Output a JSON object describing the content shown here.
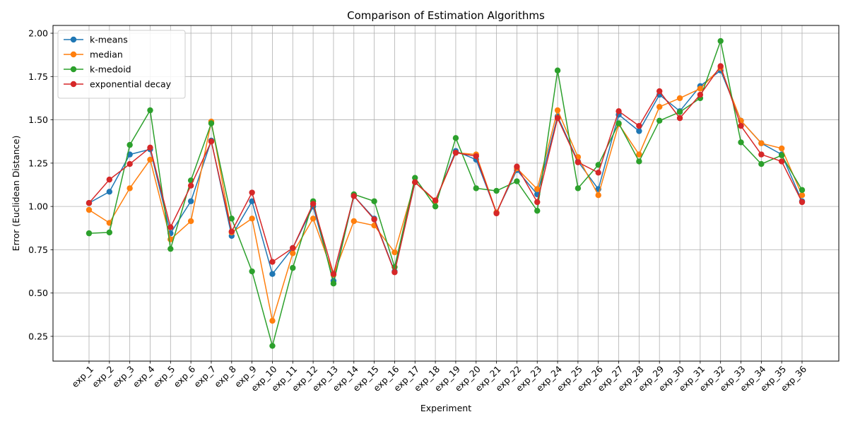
{
  "chart_data": {
    "type": "line",
    "title": "Comparison of Estimation Algorithms",
    "xlabel": "Experiment",
    "ylabel": "Error (Euclidean Distance)",
    "ylim": [
      0.107,
      2.045
    ],
    "yticks": [
      0.25,
      0.5,
      0.75,
      1.0,
      1.25,
      1.5,
      1.75,
      2.0
    ],
    "grid": true,
    "legend_position": "top-left",
    "categories": [
      "exp_1",
      "exp_2",
      "exp_3",
      "exp_4",
      "exp_5",
      "exp_6",
      "exp_7",
      "exp_8",
      "exp_9",
      "exp_10",
      "exp_11",
      "exp_12",
      "exp_13",
      "exp_14",
      "exp_15",
      "exp_16",
      "exp_17",
      "exp_18",
      "exp_19",
      "exp_20",
      "exp_21",
      "exp_22",
      "exp_23",
      "exp_24",
      "exp_25",
      "exp_26",
      "exp_27",
      "exp_28",
      "exp_29",
      "exp_30",
      "exp_31",
      "exp_32",
      "exp_33",
      "exp_34",
      "exp_35",
      "exp_36"
    ],
    "series": [
      {
        "name": "k-means",
        "color": "#1f77b4",
        "values": [
          1.02,
          1.085,
          1.3,
          1.33,
          0.845,
          1.03,
          1.38,
          0.83,
          1.03,
          0.61,
          0.76,
          1.0,
          0.57,
          1.06,
          0.93,
          0.625,
          1.14,
          1.03,
          1.32,
          1.27,
          0.965,
          1.21,
          1.07,
          1.52,
          1.26,
          1.1,
          1.53,
          1.435,
          1.645,
          1.55,
          1.695,
          1.785,
          1.495,
          1.365,
          1.3,
          1.03
        ]
      },
      {
        "name": "median",
        "color": "#ff7f0e",
        "values": [
          0.98,
          0.905,
          1.105,
          1.27,
          0.81,
          0.915,
          1.49,
          0.85,
          0.93,
          0.34,
          0.73,
          0.93,
          0.605,
          0.915,
          0.89,
          0.735,
          1.14,
          1.03,
          1.31,
          1.3,
          0.965,
          1.22,
          1.1,
          1.555,
          1.285,
          1.065,
          1.475,
          1.3,
          1.575,
          1.625,
          1.68,
          1.8,
          1.495,
          1.365,
          1.335,
          1.065
        ]
      },
      {
        "name": "k-medoid",
        "color": "#2ca02c",
        "values": [
          0.845,
          0.85,
          1.355,
          1.555,
          0.755,
          1.15,
          1.48,
          0.93,
          0.625,
          0.195,
          0.645,
          1.03,
          0.555,
          1.07,
          1.03,
          0.65,
          1.165,
          1.0,
          1.395,
          1.105,
          1.09,
          1.145,
          0.975,
          1.785,
          1.105,
          1.24,
          1.48,
          1.26,
          1.495,
          1.545,
          1.625,
          1.955,
          1.37,
          1.245,
          1.295,
          1.095
        ]
      },
      {
        "name": "exponential decay",
        "color": "#d62728",
        "values": [
          1.02,
          1.155,
          1.245,
          1.34,
          0.88,
          1.12,
          1.375,
          0.855,
          1.08,
          0.68,
          0.76,
          1.015,
          0.61,
          1.06,
          0.925,
          0.62,
          1.14,
          1.035,
          1.31,
          1.29,
          0.96,
          1.23,
          1.025,
          1.51,
          1.255,
          1.195,
          1.55,
          1.465,
          1.665,
          1.51,
          1.645,
          1.81,
          1.465,
          1.3,
          1.26,
          1.025
        ]
      }
    ]
  }
}
